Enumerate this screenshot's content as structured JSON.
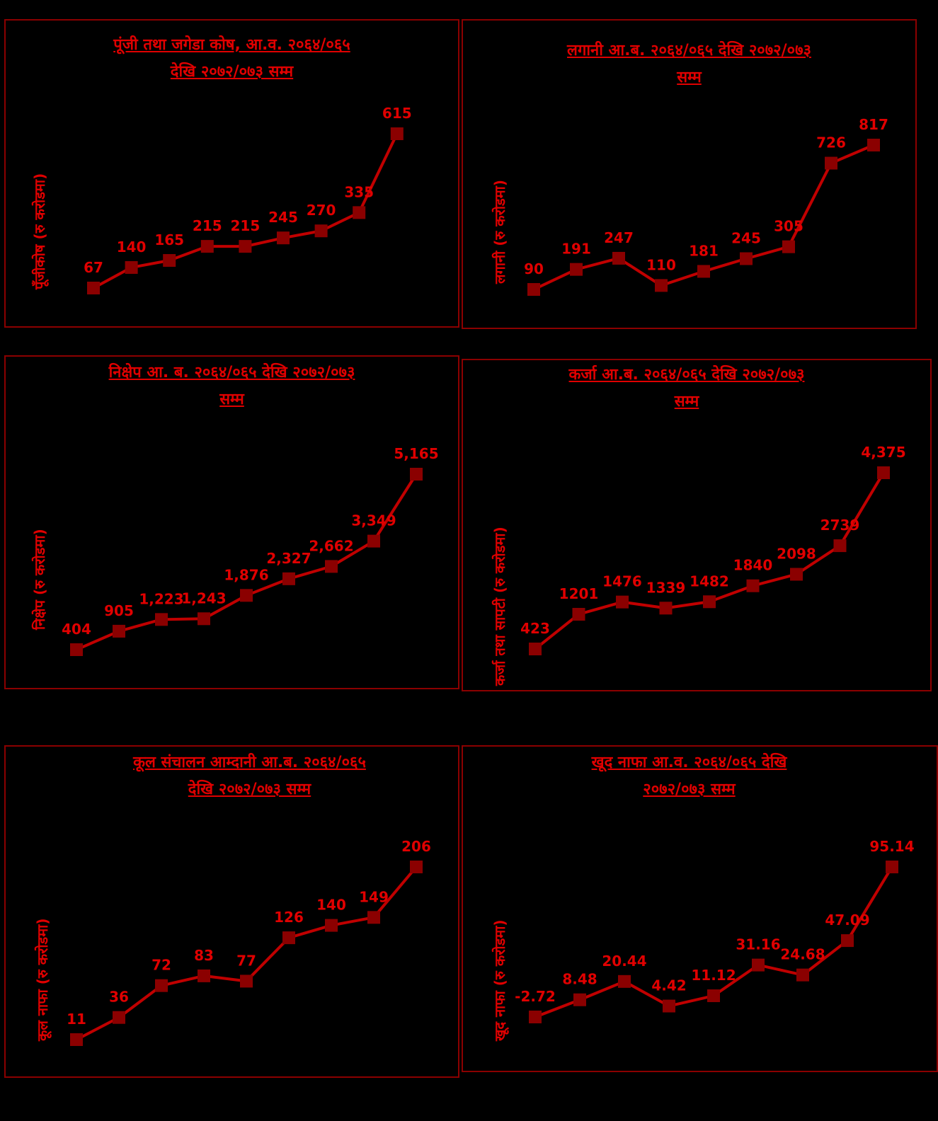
{
  "colors": {
    "title": "#e00000",
    "line": "#c00000",
    "marker": "#8b0000",
    "border": "#8b0000",
    "background": "#000000"
  },
  "chart_data": [
    {
      "type": "line",
      "title_lines": [
        "पूंजी तथा जगेडा कोष, आ.व. २०६४/०६५",
        "देखि २०७२/०७३ सम्म"
      ],
      "ylabel": "पूँजीकोष (रु करोडमा)",
      "values": [
        67,
        140,
        165,
        215,
        215,
        245,
        270,
        335,
        615
      ],
      "labels": [
        "67",
        "140",
        "165",
        "215",
        "215",
        "245",
        "270",
        "335",
        "615"
      ]
    },
    {
      "type": "line",
      "title_lines": [
        "लगानी आ.ब. २०६४/०६५ देखि २०७२/०७३",
        "सम्म"
      ],
      "ylabel": "लगानी (रु करोडमा)",
      "values": [
        90,
        191,
        247,
        110,
        181,
        245,
        305,
        726,
        817
      ],
      "labels": [
        "90",
        "191",
        "247",
        "110",
        "181",
        "245",
        "305",
        "726",
        "817"
      ]
    },
    {
      "type": "line",
      "title_lines": [
        "निक्षेप आ. ब. २०६४/०६५ देखि २०७२/०७३",
        "सम्म"
      ],
      "ylabel": "निक्षेप (रु करोडमा)",
      "values": [
        404,
        905,
        1223,
        1243,
        1876,
        2327,
        2662,
        3349,
        5165
      ],
      "labels": [
        "404",
        "905",
        "1,223",
        "1,243",
        "1,876",
        "2,327",
        "2,662",
        "3,349",
        "5,165"
      ]
    },
    {
      "type": "line",
      "title_lines": [
        "कर्जा आ.ब. २०६४/०६५ देखि २०७२/०७३",
        "सम्म"
      ],
      "ylabel": "कर्जा तथा सापटी (रु करोडमा)",
      "values": [
        423,
        1201,
        1476,
        1339,
        1482,
        1840,
        2098,
        2739,
        4375
      ],
      "labels": [
        "423",
        "1201",
        "1476",
        "1339",
        "1482",
        "1840",
        "2098",
        "2739",
        "4,375"
      ]
    },
    {
      "type": "line",
      "title_lines": [
        "कूल संचालन आम्दानी आ.ब. २०६४/०६५",
        "देखि २०७२/०७३ सम्म"
      ],
      "ylabel": "कूल नाफा (रु करोडमा)",
      "values": [
        11,
        36,
        72,
        83,
        77,
        126,
        140,
        149,
        206
      ],
      "labels": [
        "11",
        "36",
        "72",
        "83",
        "77",
        "126",
        "140",
        "149",
        "206"
      ]
    },
    {
      "type": "line",
      "title_lines": [
        "खूद नाफा आ.व. २०६४/०६५ देखि",
        "२०७२/०७३ सम्म"
      ],
      "ylabel": "खूद नाफा (रु करोडमा)",
      "values": [
        -2.72,
        8.48,
        20.44,
        4.42,
        11.12,
        31.16,
        24.68,
        47.09,
        95.14
      ],
      "labels": [
        "-2.72",
        "8.48",
        "20.44",
        "4.42",
        "11.12",
        "31.16",
        "24.68",
        "47.09",
        "95.14"
      ]
    }
  ]
}
